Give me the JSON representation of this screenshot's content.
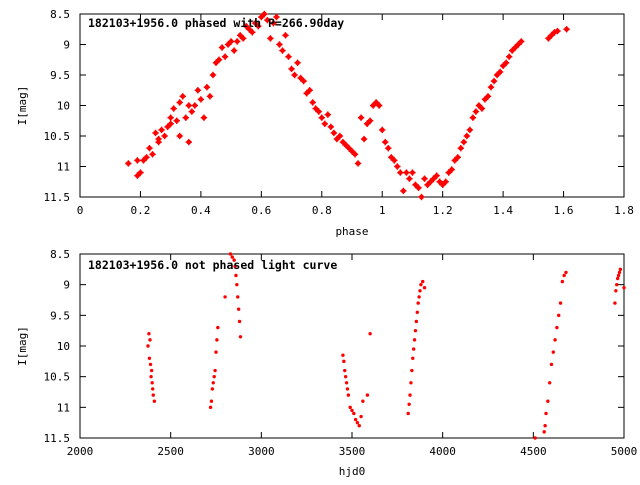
{
  "colors": {
    "points": "#ff0000",
    "axes": "#000000",
    "background": "#ffffff"
  },
  "chart_data": [
    {
      "type": "scatter",
      "title": "182103+1956.0 phased with P=266.90day",
      "xlabel": "phase",
      "ylabel": "I[mag]",
      "xlim": [
        0,
        1.8
      ],
      "ylim": [
        8.5,
        11.5
      ],
      "y_inverted": true,
      "grid": false,
      "xticks": [
        "0",
        "0.2",
        "0.4",
        "0.6",
        "0.8",
        "1",
        "1.2",
        "1.4",
        "1.6",
        "1.8"
      ],
      "yticks": [
        "8.5",
        "9",
        "9.5",
        "10",
        "10.5",
        "11",
        "11.5"
      ],
      "marker": "star",
      "x": [
        0.16,
        0.19,
        0.19,
        0.2,
        0.21,
        0.22,
        0.23,
        0.24,
        0.25,
        0.26,
        0.26,
        0.27,
        0.28,
        0.29,
        0.3,
        0.3,
        0.31,
        0.32,
        0.33,
        0.33,
        0.34,
        0.35,
        0.36,
        0.36,
        0.37,
        0.38,
        0.39,
        0.4,
        0.41,
        0.42,
        0.43,
        0.44,
        0.45,
        0.46,
        0.47,
        0.48,
        0.49,
        0.5,
        0.51,
        0.52,
        0.53,
        0.54,
        0.55,
        0.56,
        0.57,
        0.58,
        0.59,
        0.6,
        0.61,
        0.62,
        0.63,
        0.64,
        0.65,
        0.66,
        0.67,
        0.68,
        0.69,
        0.7,
        0.71,
        0.72,
        0.73,
        0.74,
        0.75,
        0.76,
        0.77,
        0.78,
        0.79,
        0.8,
        0.81,
        0.82,
        0.83,
        0.84,
        0.85,
        0.86,
        0.87,
        0.88,
        0.89,
        0.9,
        0.91,
        0.92,
        0.93,
        0.94,
        0.95,
        0.96,
        0.97,
        0.98,
        0.99,
        1.0,
        1.01,
        1.02,
        1.03,
        1.04,
        1.05,
        1.06,
        1.07,
        1.08,
        1.09,
        1.1,
        1.11,
        1.12,
        1.13,
        1.14,
        1.15,
        1.16,
        1.17,
        1.18,
        1.19,
        1.2,
        1.21,
        1.22,
        1.23,
        1.24,
        1.25,
        1.26,
        1.27,
        1.28,
        1.29,
        1.3,
        1.31,
        1.32,
        1.33,
        1.34,
        1.35,
        1.36,
        1.37,
        1.38,
        1.39,
        1.4,
        1.41,
        1.42,
        1.43,
        1.44,
        1.45,
        1.46,
        1.55,
        1.56,
        1.57,
        1.58,
        1.61
      ],
      "y": [
        10.95,
        10.9,
        11.15,
        11.1,
        10.9,
        10.85,
        10.7,
        10.8,
        10.45,
        10.6,
        10.55,
        10.4,
        10.5,
        10.35,
        10.2,
        10.3,
        10.05,
        10.25,
        9.95,
        10.5,
        9.85,
        10.2,
        10.0,
        10.6,
        10.1,
        10.0,
        9.75,
        9.9,
        10.2,
        9.7,
        9.85,
        9.5,
        9.3,
        9.25,
        9.05,
        9.2,
        9.0,
        8.95,
        9.1,
        8.95,
        8.85,
        8.9,
        8.7,
        8.75,
        8.8,
        8.65,
        8.7,
        8.55,
        8.5,
        8.6,
        8.9,
        8.65,
        8.55,
        9.0,
        9.1,
        8.85,
        9.2,
        9.4,
        9.5,
        9.3,
        9.55,
        9.6,
        9.8,
        9.75,
        9.95,
        10.05,
        10.1,
        10.2,
        10.3,
        10.15,
        10.35,
        10.45,
        10.55,
        10.5,
        10.6,
        10.65,
        10.7,
        10.75,
        10.8,
        10.95,
        10.2,
        10.55,
        10.3,
        10.25,
        10.0,
        9.95,
        10.0,
        10.4,
        10.6,
        10.7,
        10.85,
        10.9,
        11.0,
        11.1,
        11.4,
        11.1,
        11.2,
        11.1,
        11.3,
        11.35,
        11.5,
        11.2,
        11.3,
        11.25,
        11.2,
        11.15,
        11.25,
        11.3,
        11.25,
        11.1,
        11.05,
        10.9,
        10.85,
        10.7,
        10.6,
        10.5,
        10.4,
        10.2,
        10.1,
        10.0,
        10.05,
        9.9,
        9.85,
        9.7,
        9.6,
        9.5,
        9.45,
        9.35,
        9.3,
        9.2,
        9.1,
        9.05,
        9.0,
        8.95,
        8.9,
        8.85,
        8.8,
        8.78,
        8.75
      ]
    },
    {
      "type": "scatter",
      "title": "182103+1956.0 not phased light curve",
      "xlabel": "hjd0",
      "ylabel": "I[mag]",
      "xlim": [
        2000,
        5000
      ],
      "ylim": [
        8.5,
        11.5
      ],
      "y_inverted": true,
      "grid": false,
      "xticks": [
        "2000",
        "2500",
        "3000",
        "3500",
        "4000",
        "4500",
        "5000"
      ],
      "yticks": [
        "8.5",
        "9",
        "9.5",
        "10",
        "10.5",
        "11",
        "11.5"
      ],
      "marker": "dot",
      "x": [
        2375,
        2380,
        2383,
        2386,
        2389,
        2392,
        2395,
        2398,
        2401,
        2404,
        2410,
        2720,
        2725,
        2730,
        2735,
        2740,
        2745,
        2750,
        2755,
        2760,
        2800,
        2830,
        2840,
        2850,
        2855,
        2860,
        2865,
        2870,
        2875,
        2880,
        2885,
        3450,
        3455,
        3460,
        3465,
        3470,
        3475,
        3480,
        3490,
        3500,
        3510,
        3520,
        3530,
        3540,
        3550,
        3560,
        3585,
        3600,
        3810,
        3815,
        3820,
        3825,
        3830,
        3835,
        3840,
        3845,
        3850,
        3855,
        3860,
        3865,
        3870,
        3875,
        3880,
        3890,
        3900,
        4510,
        4560,
        4565,
        4570,
        4580,
        4590,
        4600,
        4610,
        4620,
        4630,
        4640,
        4650,
        4660,
        4670,
        4680,
        4950,
        4955,
        4960,
        4965,
        4970,
        4975,
        4980,
        5000
      ],
      "y": [
        10.0,
        9.8,
        10.2,
        9.9,
        10.3,
        10.5,
        10.4,
        10.6,
        10.7,
        10.8,
        10.9,
        11.0,
        10.9,
        10.7,
        10.6,
        10.5,
        10.4,
        10.1,
        9.9,
        9.7,
        9.2,
        8.5,
        8.55,
        8.6,
        8.7,
        8.85,
        9.0,
        9.2,
        9.4,
        9.6,
        9.85,
        10.15,
        10.25,
        10.4,
        10.5,
        10.6,
        10.7,
        10.8,
        11.0,
        11.05,
        11.1,
        11.2,
        11.25,
        11.3,
        11.15,
        10.9,
        10.8,
        9.8,
        11.1,
        10.95,
        10.8,
        10.6,
        10.4,
        10.2,
        10.05,
        9.9,
        9.75,
        9.6,
        9.45,
        9.3,
        9.2,
        9.1,
        9.0,
        8.95,
        9.05,
        11.5,
        11.4,
        11.3,
        11.1,
        10.9,
        10.6,
        10.3,
        10.1,
        9.9,
        9.7,
        9.5,
        9.3,
        8.95,
        8.85,
        8.8,
        9.3,
        9.1,
        9.0,
        8.9,
        8.85,
        8.8,
        8.75,
        9.05
      ]
    }
  ]
}
